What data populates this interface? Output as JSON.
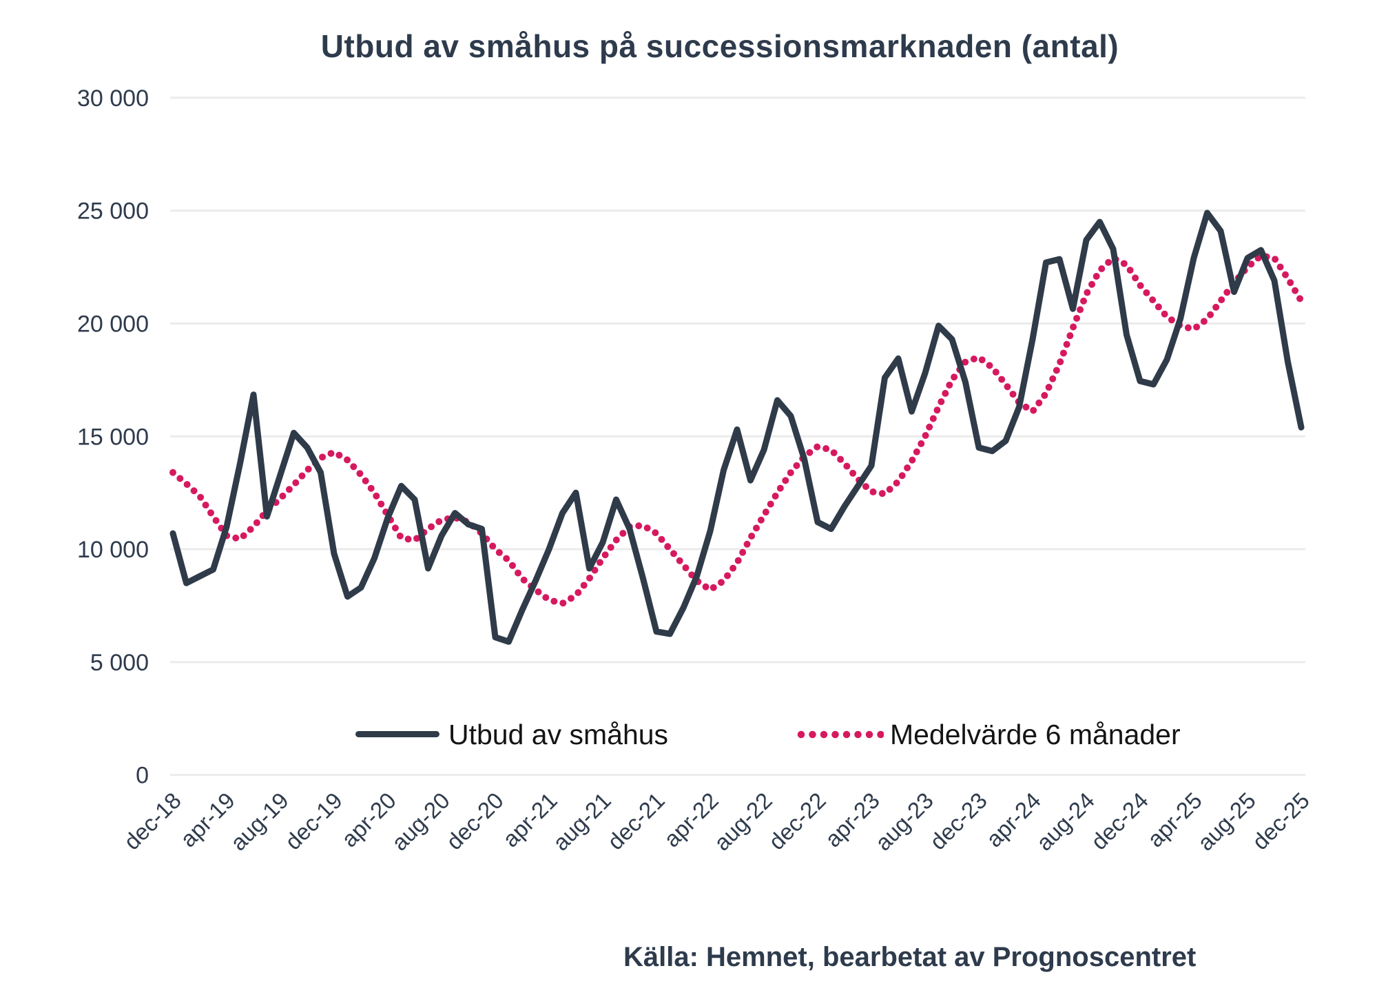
{
  "title": "Utbud av småhus på successionsmarknaden (antal)",
  "source": "Källa: Hemnet, bearbetat av Prognoscentret",
  "legend": {
    "series1": "Utbud av småhus",
    "series2": "Medelvärde 6 månader"
  },
  "colors": {
    "supply_line": "#2f3b49",
    "average_line": "#d6195f",
    "grid": "#ebebeb",
    "axis_text": "#2e3b4c",
    "legend_text": "#141414",
    "background": "#ffffff"
  },
  "chart_data": {
    "type": "line",
    "title": "Utbud av småhus på successionsmarknaden (antal)",
    "xlabel": "",
    "ylabel": "",
    "ylim": [
      0,
      30000
    ],
    "yticks": [
      0,
      5000,
      10000,
      15000,
      20000,
      25000,
      30000
    ],
    "ytick_labels": [
      "0",
      "5 000",
      "10 000",
      "15 000",
      "20 000",
      "25 000",
      "30 000"
    ],
    "grid": "horizontal",
    "legend_position": "bottom-inside",
    "x_tick_every": 4,
    "x": [
      "dec-18",
      "jan-19",
      "feb-19",
      "mar-19",
      "apr-19",
      "maj-19",
      "jun-19",
      "jul-19",
      "aug-19",
      "sep-19",
      "okt-19",
      "nov-19",
      "dec-19",
      "jan-20",
      "feb-20",
      "mar-20",
      "apr-20",
      "maj-20",
      "jun-20",
      "jul-20",
      "aug-20",
      "sep-20",
      "okt-20",
      "nov-20",
      "dec-20",
      "jan-21",
      "feb-21",
      "mar-21",
      "apr-21",
      "maj-21",
      "jun-21",
      "jul-21",
      "aug-21",
      "sep-21",
      "okt-21",
      "nov-21",
      "dec-21",
      "jan-22",
      "feb-22",
      "mar-22",
      "apr-22",
      "maj-22",
      "jun-22",
      "jul-22",
      "aug-22",
      "sep-22",
      "okt-22",
      "nov-22",
      "dec-22",
      "jan-23",
      "feb-23",
      "mar-23",
      "apr-23",
      "maj-23",
      "jun-23",
      "jul-23",
      "aug-23",
      "sep-23",
      "okt-23",
      "nov-23",
      "dec-23",
      "jan-24",
      "feb-24",
      "mar-24",
      "apr-24",
      "maj-24",
      "jun-24",
      "jul-24",
      "aug-24",
      "sep-24",
      "okt-24",
      "nov-24",
      "dec-24",
      "jan-25",
      "feb-25",
      "mar-25",
      "apr-25",
      "maj-25",
      "jun-25",
      "jul-25",
      "aug-25",
      "sep-25",
      "okt-25",
      "nov-25",
      "dec-25"
    ],
    "x_tick_labels": [
      "dec-18",
      "apr-19",
      "aug-19",
      "dec-19",
      "apr-20",
      "aug-20",
      "dec-20",
      "apr-21",
      "aug-21",
      "dec-21",
      "apr-22",
      "aug-22",
      "dec-22",
      "apr-23",
      "aug-23",
      "dec-23",
      "apr-24",
      "aug-24",
      "dec-24",
      "apr-25",
      "aug-25",
      "dec-25"
    ],
    "series": [
      {
        "name": "Utbud av småhus",
        "style": "solid",
        "color": "#2f3b49",
        "values": [
          10700,
          8500,
          8800,
          9100,
          11000,
          13800,
          16850,
          11450,
          13300,
          15150,
          14500,
          13400,
          9800,
          7900,
          8300,
          9600,
          11400,
          12800,
          12200,
          9150,
          10600,
          11600,
          11100,
          10900,
          6100,
          5900,
          7300,
          8600,
          10000,
          11600,
          12500,
          9150,
          10300,
          12200,
          10900,
          8700,
          6350,
          6250,
          7400,
          8800,
          10800,
          13500,
          15300,
          13050,
          14400,
          16600,
          15900,
          14000,
          11200,
          10900,
          11900,
          12800,
          13700,
          17600,
          18450,
          16100,
          17800,
          19900,
          19300,
          17400,
          14500,
          14350,
          14800,
          16300,
          19300,
          22700,
          22850,
          20650,
          23700,
          24500,
          23300,
          19500,
          17450,
          17300,
          18400,
          20200,
          22900,
          24900,
          24100,
          21400,
          22900,
          23250,
          21900,
          18300,
          15400
        ]
      },
      {
        "name": "Medelvärde 6 månader",
        "style": "dotted",
        "color": "#d6195f",
        "values": [
          13400,
          12900,
          12350,
          11450,
          10600,
          10450,
          11000,
          11700,
          12250,
          12850,
          13500,
          14050,
          14300,
          13950,
          13300,
          12500,
          11500,
          10500,
          10400,
          10900,
          11300,
          11400,
          11200,
          10700,
          10000,
          9500,
          8700,
          8200,
          7750,
          7600,
          7950,
          8700,
          9600,
          10400,
          11000,
          11050,
          10700,
          10000,
          9300,
          8600,
          8200,
          8600,
          9400,
          10500,
          11500,
          12500,
          13400,
          14100,
          14550,
          14400,
          13800,
          13100,
          12550,
          12450,
          13000,
          13900,
          15000,
          16300,
          17500,
          18300,
          18500,
          18050,
          17300,
          16500,
          16100,
          16900,
          18200,
          19800,
          21300,
          22350,
          22900,
          22600,
          21700,
          21000,
          20300,
          19900,
          19750,
          20200,
          21000,
          21800,
          22500,
          23000,
          22900,
          22000,
          21000
        ]
      }
    ]
  }
}
